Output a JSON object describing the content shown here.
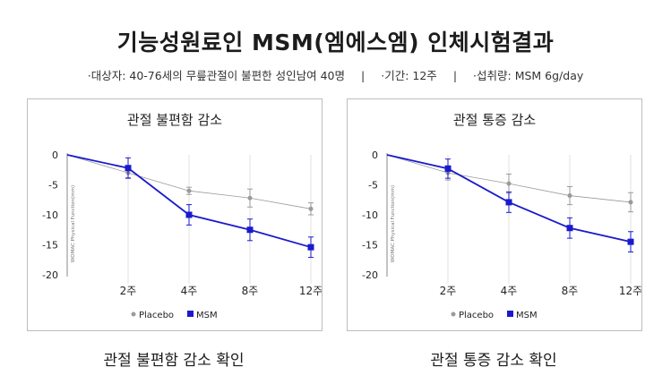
{
  "header": {
    "title": "기능성원료인 MSM(엠에스엠) 인체시험결과",
    "info": [
      "·대상자: 40-76세의 무릎관절이 불편한 성인남여 40명",
      "·기간: 12주",
      "·섭취량: MSM 6g/day"
    ],
    "separator": "|"
  },
  "captions": [
    "관절 불편함 감소 확인",
    "관절 통증 감소 확인"
  ],
  "colors": {
    "placebo": "#9a9a9a",
    "msm": "#1a1acc",
    "grid": "#e2e2e2",
    "axis": "#888888"
  },
  "chart_data": [
    {
      "type": "line",
      "title": "관절 불편함 감소",
      "ylabel": "WOMAC Physical Function(mm)",
      "x": [
        0,
        2,
        4,
        8,
        12
      ],
      "xticks": [
        2,
        4,
        8,
        12
      ],
      "xtick_labels": [
        "2주",
        "4주",
        "8주",
        "12주"
      ],
      "ylim": [
        -20,
        0
      ],
      "yticks": [
        0,
        -5,
        -10,
        -15,
        -20
      ],
      "grid": true,
      "legend": "bottom",
      "series": [
        {
          "name": "Placebo",
          "values": [
            0,
            -3,
            -6,
            -7.2,
            -9
          ],
          "errors": [
            0,
            0.8,
            0.6,
            1.5,
            1.0
          ]
        },
        {
          "name": "MSM",
          "values": [
            0,
            -2.2,
            -10,
            -12.5,
            -15.4
          ],
          "errors": [
            0,
            1.7,
            1.7,
            1.8,
            1.7
          ]
        }
      ]
    },
    {
      "type": "line",
      "title": "관절 통증 감소",
      "ylabel": "WOMAC Physical Function(mm)",
      "x": [
        0,
        2,
        4,
        8,
        12
      ],
      "xticks": [
        2,
        4,
        8,
        12
      ],
      "xtick_labels": [
        "2주",
        "4주",
        "8주",
        "12주"
      ],
      "ylim": [
        -20,
        0
      ],
      "yticks": [
        0,
        -5,
        -10,
        -15,
        -20
      ],
      "grid": true,
      "legend": "bottom",
      "series": [
        {
          "name": "Placebo",
          "values": [
            0,
            -3,
            -4.8,
            -6.8,
            -7.9
          ],
          "errors": [
            0,
            1.2,
            1.6,
            1.5,
            1.6
          ]
        },
        {
          "name": "MSM",
          "values": [
            0,
            -2.3,
            -7.9,
            -12.2,
            -14.5
          ],
          "errors": [
            0,
            1.6,
            1.7,
            1.7,
            1.7
          ]
        }
      ]
    }
  ]
}
